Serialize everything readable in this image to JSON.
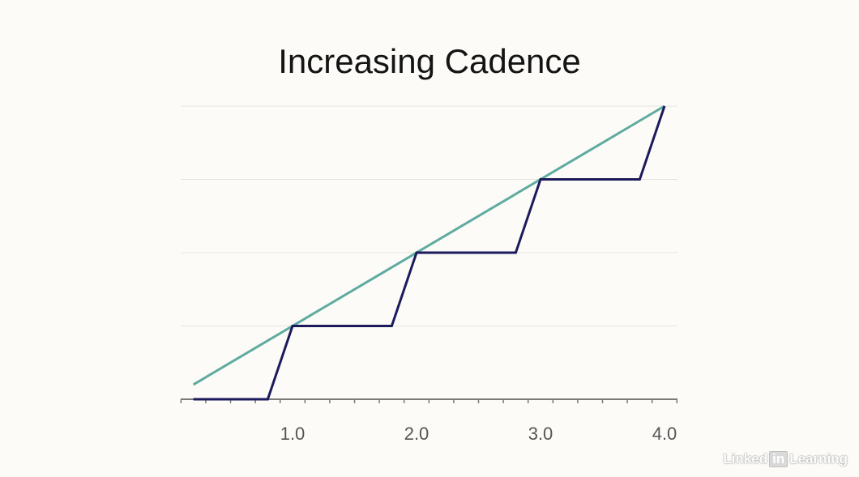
{
  "chart_data": {
    "type": "line",
    "title": "Increasing Cadence",
    "xlabel": "",
    "ylabel": "",
    "xlim": [
      0.1,
      4.1
    ],
    "ylim": [
      0,
      4
    ],
    "x_ticks": [
      1.0,
      2.0,
      3.0,
      4.0
    ],
    "x_tick_labels": [
      "1.0",
      "2.0",
      "3.0",
      "4.0"
    ],
    "grid": true,
    "legend": "none",
    "series": [
      {
        "color": "#5fab9f",
        "x": [
          0.2,
          4.0
        ],
        "y": [
          0.2,
          4.0
        ]
      },
      {
        "color": "#1c1a5c",
        "x": [
          0.2,
          0.8,
          1.0,
          1.8,
          2.0,
          2.8,
          3.0,
          3.8,
          4.0
        ],
        "y": [
          0,
          0,
          1,
          1,
          2,
          2,
          3,
          3,
          4
        ]
      }
    ]
  },
  "watermark": {
    "prefix": "Linked",
    "badge": "in",
    "suffix": "Learning"
  }
}
